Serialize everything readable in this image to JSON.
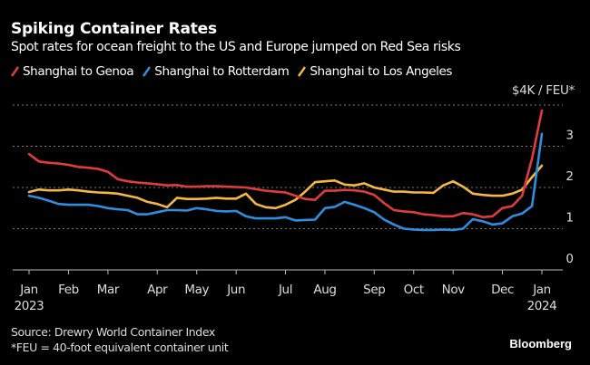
{
  "title": "Spiking Container Rates",
  "subtitle": "Spot rates for ocean freight to the US and Europe jumped on Red Sea risks",
  "unit_label": "$4K / FEU*",
  "source": "Source: Drewry World Container Index",
  "footnote": "*FEU = 40-foot equivalent container unit",
  "brand": "Bloomberg",
  "chart_data": {
    "type": "line",
    "title": "Spiking Container Rates",
    "xlabel": "",
    "ylabel": "$K / FEU",
    "ylim": [
      0,
      4
    ],
    "yticks": [
      0,
      1,
      2,
      3,
      4
    ],
    "ytick_labels": [
      "0",
      "1",
      "2",
      "3",
      "$4K / FEU*"
    ],
    "grid": true,
    "legend_position": "top-left",
    "x_start": "2023-01-05",
    "x_interval": "weekly",
    "xtick_labels": [
      {
        "label": "Jan",
        "sub": "2023",
        "week": 0
      },
      {
        "label": "Feb",
        "sub": "",
        "week": 4
      },
      {
        "label": "Mar",
        "sub": "",
        "week": 8
      },
      {
        "label": "Apr",
        "sub": "",
        "week": 13
      },
      {
        "label": "May",
        "sub": "",
        "week": 17
      },
      {
        "label": "Jun",
        "sub": "",
        "week": 21
      },
      {
        "label": "Jul",
        "sub": "",
        "week": 26
      },
      {
        "label": "Aug",
        "sub": "",
        "week": 30
      },
      {
        "label": "Sep",
        "sub": "",
        "week": 35
      },
      {
        "label": "Oct",
        "sub": "",
        "week": 39
      },
      {
        "label": "Nov",
        "sub": "",
        "week": 43
      },
      {
        "label": "Dec",
        "sub": "",
        "week": 48
      },
      {
        "label": "Jan",
        "sub": "2024",
        "week": 52
      }
    ],
    "series": [
      {
        "name": "Shanghai to Genoa",
        "color": "#e03c3c",
        "values": [
          2.81,
          2.63,
          2.6,
          2.58,
          2.55,
          2.5,
          2.48,
          2.45,
          2.38,
          2.2,
          2.15,
          2.12,
          2.1,
          2.08,
          2.05,
          2.06,
          2.02,
          2.02,
          2.03,
          2.03,
          2.02,
          2.01,
          2.0,
          1.96,
          1.92,
          1.9,
          1.88,
          1.8,
          1.72,
          1.7,
          1.92,
          1.92,
          1.94,
          1.93,
          1.9,
          1.82,
          1.62,
          1.45,
          1.42,
          1.4,
          1.35,
          1.33,
          1.3,
          1.3,
          1.38,
          1.35,
          1.28,
          1.3,
          1.5,
          1.55,
          1.8,
          2.7,
          3.87
        ]
      },
      {
        "name": "Shanghai to Rotterdam",
        "color": "#2e8fe0",
        "values": [
          1.8,
          1.75,
          1.68,
          1.6,
          1.58,
          1.58,
          1.58,
          1.55,
          1.5,
          1.47,
          1.45,
          1.35,
          1.35,
          1.4,
          1.45,
          1.45,
          1.44,
          1.5,
          1.47,
          1.43,
          1.42,
          1.43,
          1.3,
          1.25,
          1.25,
          1.25,
          1.28,
          1.2,
          1.21,
          1.22,
          1.5,
          1.53,
          1.65,
          1.58,
          1.5,
          1.4,
          1.22,
          1.1,
          1.0,
          0.98,
          0.97,
          0.97,
          0.98,
          0.97,
          1.0,
          1.23,
          1.18,
          1.1,
          1.13,
          1.3,
          1.37,
          1.55,
          3.3
        ]
      },
      {
        "name": "Shanghai to Los Angeles",
        "color": "#f5b841",
        "values": [
          1.89,
          1.95,
          1.93,
          1.93,
          1.95,
          1.93,
          1.9,
          1.88,
          1.87,
          1.85,
          1.8,
          1.75,
          1.65,
          1.6,
          1.52,
          1.75,
          1.72,
          1.72,
          1.73,
          1.75,
          1.73,
          1.73,
          1.85,
          1.6,
          1.52,
          1.5,
          1.58,
          1.7,
          1.9,
          2.13,
          2.15,
          2.17,
          2.07,
          2.05,
          2.1,
          2.0,
          1.95,
          1.9,
          1.9,
          1.88,
          1.88,
          1.87,
          2.05,
          2.15,
          2.02,
          1.85,
          1.82,
          1.8,
          1.8,
          1.85,
          1.95,
          2.25,
          2.53
        ]
      }
    ]
  }
}
